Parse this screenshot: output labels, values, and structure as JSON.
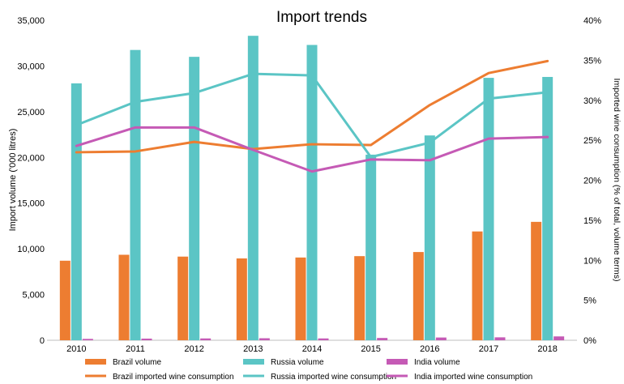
{
  "chart_data": {
    "type": "bar",
    "title": "Import trends",
    "xlabel": "",
    "ylabel": "Import  volume ('000 litres)",
    "y2label": "Imported wine consumption (% of total, volume terms)",
    "categories": [
      "2010",
      "2011",
      "2012",
      "2013",
      "2014",
      "2015",
      "2016",
      "2017",
      "2018"
    ],
    "ylim": [
      0,
      35000
    ],
    "y2lim": [
      0,
      40
    ],
    "yticks": [
      "0",
      "5,000",
      "10,000",
      "15,000",
      "20,000",
      "25,000",
      "30,000",
      "35,000"
    ],
    "y2ticks": [
      "0%",
      "5%",
      "10%",
      "15%",
      "20%",
      "25%",
      "30%",
      "35%",
      "40%"
    ],
    "bar_series": [
      {
        "name": "Brazil volume",
        "color": "#ED7D31",
        "values": [
          8700,
          9350,
          9150,
          8950,
          9050,
          9200,
          9650,
          11900,
          12950
        ]
      },
      {
        "name": "Russia volume",
        "color": "#5BC5C5",
        "values": [
          28100,
          31750,
          31000,
          33300,
          32300,
          20300,
          22400,
          28700,
          28800
        ]
      },
      {
        "name": "India volume",
        "color": "#C55AB5",
        "values": [
          150,
          180,
          200,
          220,
          200,
          250,
          300,
          320,
          420
        ]
      }
    ],
    "line_series": [
      {
        "name": "Brazil imported wine consumption",
        "color": "#ED7D31",
        "values": [
          23.5,
          23.6,
          24.8,
          23.9,
          24.5,
          24.4,
          29.4,
          33.4,
          34.9
        ]
      },
      {
        "name": "Russia imported wine consumption",
        "color": "#5BC5C5",
        "values": [
          26.9,
          29.8,
          30.9,
          33.3,
          33.1,
          22.9,
          24.7,
          30.2,
          31.0
        ]
      },
      {
        "name": "India imported wine consumption",
        "color": "#C55AB5",
        "values": [
          24.3,
          26.6,
          26.6,
          23.8,
          21.1,
          22.6,
          22.5,
          25.2,
          25.4
        ]
      }
    ],
    "grid": false,
    "legend_position": "bottom"
  }
}
